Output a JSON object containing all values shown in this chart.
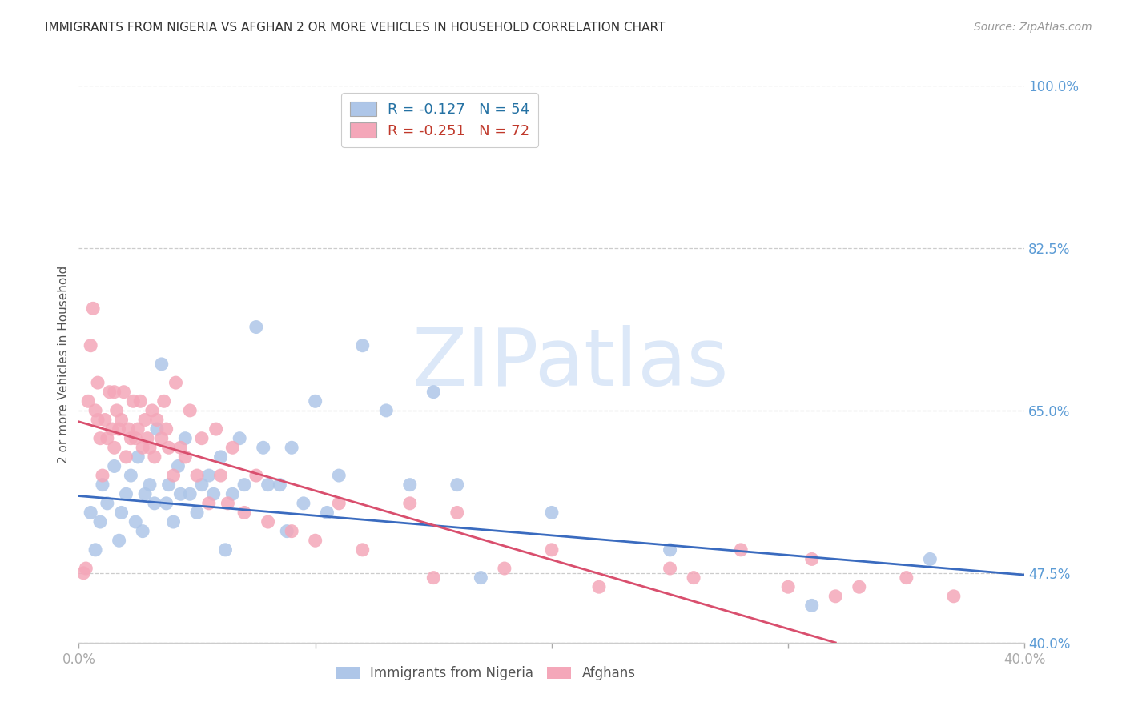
{
  "title": "IMMIGRANTS FROM NIGERIA VS AFGHAN 2 OR MORE VEHICLES IN HOUSEHOLD CORRELATION CHART",
  "source": "Source: ZipAtlas.com",
  "ylabel": "2 or more Vehicles in Household",
  "xlim": [
    0.0,
    0.4
  ],
  "ylim": [
    0.4,
    1.0
  ],
  "xticks": [
    0.0,
    0.1,
    0.2,
    0.3,
    0.4
  ],
  "xtick_labels": [
    "0.0%",
    "",
    "",
    "",
    "40.0%"
  ],
  "yticks_right": [
    1.0,
    0.825,
    0.65,
    0.475,
    0.4
  ],
  "ytick_labels_right": [
    "100.0%",
    "82.5%",
    "65.0%",
    "47.5%",
    "40.0%"
  ],
  "nigeria_R": "-0.127",
  "nigeria_N": "54",
  "afghan_R": "-0.251",
  "afghan_N": "72",
  "nigeria_color": "#aec6e8",
  "afghan_color": "#f4a7b9",
  "nigeria_line_color": "#3a6bbf",
  "afghan_line_color": "#d94f6e",
  "watermark_text": "ZIPatlas",
  "watermark_color": "#dce8f8",
  "background_color": "#ffffff",
  "grid_color": "#cccccc",
  "legend_label_nigeria": "Immigrants from Nigeria",
  "legend_label_afghan": "Afghans",
  "nigeria_line_x": [
    0.0,
    0.4
  ],
  "nigeria_line_y": [
    0.558,
    0.473
  ],
  "afghan_line_x": [
    0.0,
    0.32
  ],
  "afghan_line_y": [
    0.638,
    0.4
  ],
  "nigeria_scatter_x": [
    0.005,
    0.007,
    0.009,
    0.01,
    0.012,
    0.015,
    0.017,
    0.018,
    0.02,
    0.022,
    0.024,
    0.025,
    0.027,
    0.028,
    0.03,
    0.032,
    0.033,
    0.035,
    0.037,
    0.038,
    0.04,
    0.042,
    0.043,
    0.045,
    0.047,
    0.05,
    0.052,
    0.055,
    0.057,
    0.06,
    0.062,
    0.065,
    0.068,
    0.07,
    0.075,
    0.078,
    0.08,
    0.085,
    0.088,
    0.09,
    0.095,
    0.1,
    0.105,
    0.11,
    0.12,
    0.13,
    0.14,
    0.15,
    0.16,
    0.17,
    0.2,
    0.25,
    0.31,
    0.36
  ],
  "nigeria_scatter_y": [
    0.54,
    0.5,
    0.53,
    0.57,
    0.55,
    0.59,
    0.51,
    0.54,
    0.56,
    0.58,
    0.53,
    0.6,
    0.52,
    0.56,
    0.57,
    0.55,
    0.63,
    0.7,
    0.55,
    0.57,
    0.53,
    0.59,
    0.56,
    0.62,
    0.56,
    0.54,
    0.57,
    0.58,
    0.56,
    0.6,
    0.5,
    0.56,
    0.62,
    0.57,
    0.74,
    0.61,
    0.57,
    0.57,
    0.52,
    0.61,
    0.55,
    0.66,
    0.54,
    0.58,
    0.72,
    0.65,
    0.57,
    0.67,
    0.57,
    0.47,
    0.54,
    0.5,
    0.44,
    0.49
  ],
  "afghan_scatter_x": [
    0.002,
    0.003,
    0.004,
    0.005,
    0.006,
    0.007,
    0.008,
    0.008,
    0.009,
    0.01,
    0.011,
    0.012,
    0.013,
    0.014,
    0.015,
    0.015,
    0.016,
    0.017,
    0.018,
    0.019,
    0.02,
    0.021,
    0.022,
    0.023,
    0.024,
    0.025,
    0.026,
    0.027,
    0.028,
    0.029,
    0.03,
    0.031,
    0.032,
    0.033,
    0.035,
    0.036,
    0.037,
    0.038,
    0.04,
    0.041,
    0.043,
    0.045,
    0.047,
    0.05,
    0.052,
    0.055,
    0.058,
    0.06,
    0.063,
    0.065,
    0.07,
    0.075,
    0.08,
    0.09,
    0.1,
    0.11,
    0.12,
    0.14,
    0.15,
    0.16,
    0.18,
    0.2,
    0.22,
    0.25,
    0.26,
    0.28,
    0.3,
    0.31,
    0.32,
    0.33,
    0.35,
    0.37
  ],
  "afghan_scatter_y": [
    0.475,
    0.48,
    0.66,
    0.72,
    0.76,
    0.65,
    0.64,
    0.68,
    0.62,
    0.58,
    0.64,
    0.62,
    0.67,
    0.63,
    0.61,
    0.67,
    0.65,
    0.63,
    0.64,
    0.67,
    0.6,
    0.63,
    0.62,
    0.66,
    0.62,
    0.63,
    0.66,
    0.61,
    0.64,
    0.62,
    0.61,
    0.65,
    0.6,
    0.64,
    0.62,
    0.66,
    0.63,
    0.61,
    0.58,
    0.68,
    0.61,
    0.6,
    0.65,
    0.58,
    0.62,
    0.55,
    0.63,
    0.58,
    0.55,
    0.61,
    0.54,
    0.58,
    0.53,
    0.52,
    0.51,
    0.55,
    0.5,
    0.55,
    0.47,
    0.54,
    0.48,
    0.5,
    0.46,
    0.48,
    0.47,
    0.5,
    0.46,
    0.49,
    0.45,
    0.46,
    0.47,
    0.45
  ]
}
